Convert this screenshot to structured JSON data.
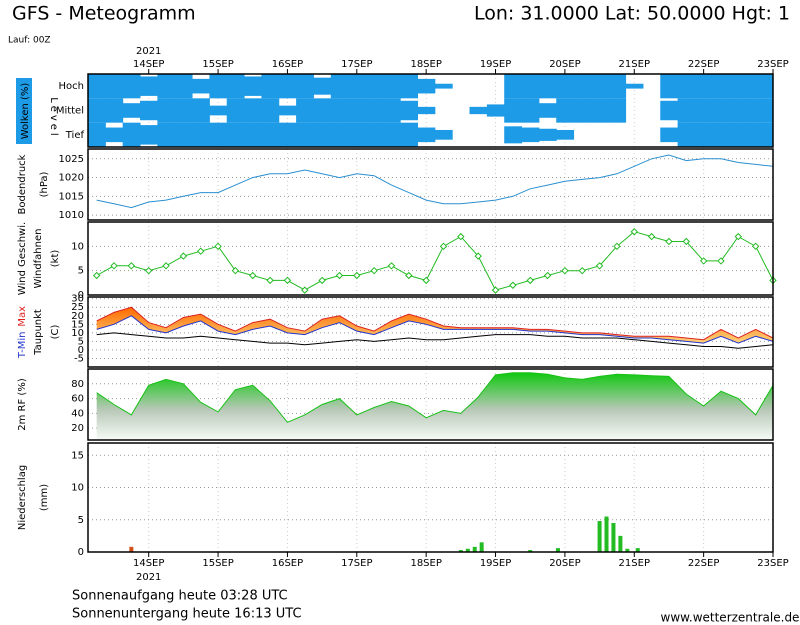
{
  "header": {
    "title": "GFS - Meteogramm",
    "location": "Lon: 31.0000 Lat: 50.0000 Hgt: 1",
    "run": "Lauf: 00Z"
  },
  "footer": {
    "sunrise": "Sonnenaufgang heute 03:28 UTC",
    "sunset": "Sonnenuntergang heute 16:13 UTC",
    "source": "www.wetterzentrale.de"
  },
  "time_axis": {
    "year": "2021",
    "xlim": [
      13.125,
      23
    ],
    "xticks": [
      {
        "value": 14,
        "label": "14SEP"
      },
      {
        "value": 15,
        "label": "15SEP"
      },
      {
        "value": 16,
        "label": "16SEP"
      },
      {
        "value": 17,
        "label": "17SEP"
      },
      {
        "value": 18,
        "label": "18SEP"
      },
      {
        "value": 19,
        "label": "19SEP"
      },
      {
        "value": 20,
        "label": "20SEP"
      },
      {
        "value": 21,
        "label": "21SEP"
      },
      {
        "value": 22,
        "label": "22SEP"
      },
      {
        "value": 23,
        "label": "23SEP"
      }
    ],
    "x": [
      13.25,
      13.5,
      13.75,
      14.0,
      14.25,
      14.5,
      14.75,
      15.0,
      15.25,
      15.5,
      15.75,
      16.0,
      16.25,
      16.5,
      16.75,
      17.0,
      17.25,
      17.5,
      17.75,
      18.0,
      18.25,
      18.5,
      18.75,
      19.0,
      19.25,
      19.5,
      19.75,
      20.0,
      20.25,
      20.5,
      20.75,
      21.0,
      21.25,
      21.5,
      21.75,
      22.0,
      22.25,
      22.5,
      22.75,
      23.0
    ]
  },
  "chart_data": [
    {
      "type": "cloud",
      "ylabel": "Wolken (%)",
      "level_label": "Level",
      "series": [
        {
          "name": "Hoch",
          "color": "#1e9be6",
          "values": [
            100,
            100,
            100,
            80,
            100,
            100,
            60,
            100,
            100,
            80,
            100,
            100,
            100,
            70,
            100,
            100,
            100,
            100,
            100,
            60,
            20,
            0,
            0,
            0,
            100,
            100,
            100,
            100,
            100,
            100,
            100,
            20,
            0,
            100,
            100,
            100,
            100,
            100,
            100,
            100
          ]
        },
        {
          "name": "Mittel",
          "color": "#1e9be6",
          "values": [
            100,
            100,
            60,
            80,
            100,
            100,
            100,
            40,
            100,
            100,
            100,
            40,
            100,
            100,
            100,
            100,
            100,
            100,
            80,
            30,
            0,
            0,
            30,
            50,
            100,
            100,
            60,
            100,
            100,
            100,
            100,
            0,
            0,
            80,
            100,
            100,
            100,
            100,
            100,
            100
          ]
        },
        {
          "name": "Tief",
          "color": "#1e9be6",
          "values": [
            100,
            60,
            100,
            80,
            100,
            100,
            100,
            100,
            100,
            100,
            100,
            100,
            100,
            100,
            100,
            100,
            100,
            100,
            100,
            60,
            40,
            0,
            0,
            0,
            70,
            60,
            50,
            40,
            0,
            0,
            0,
            0,
            0,
            60,
            100,
            100,
            100,
            100,
            100,
            100
          ]
        }
      ]
    },
    {
      "type": "line",
      "ylabel": "Bodendruck",
      "yunit": "(hPa)",
      "ylim": [
        1008.7,
        1027.6
      ],
      "yticks": [
        1010,
        1015,
        1020,
        1025
      ],
      "grid": true,
      "series": [
        {
          "color": "#2a8fd0",
          "values": [
            1014,
            1013,
            1012,
            1013.5,
            1014,
            1015,
            1016,
            1016,
            1018,
            1020,
            1021,
            1021,
            1022,
            1021,
            1020,
            1021,
            1020.5,
            1018,
            1016,
            1014,
            1013,
            1013,
            1013.5,
            1014,
            1015,
            1017,
            1018,
            1019,
            1019.5,
            1020,
            1021,
            1023,
            1025,
            1026,
            1024.5,
            1025,
            1025,
            1024,
            1023.5,
            1023
          ]
        }
      ]
    },
    {
      "type": "line",
      "ylabel": "Windfahnen",
      "yunit": "(kt)",
      "ylim": [
        0,
        15
      ],
      "yticks": [
        0,
        5,
        10
      ],
      "grid": true,
      "series": [
        {
          "name": "Wind Geschwi.",
          "color": "#22bb22",
          "marker": "diamond",
          "values": [
            4,
            6,
            6,
            5,
            6,
            8,
            9,
            10,
            5,
            4,
            3,
            3,
            1,
            3,
            4,
            4,
            5,
            6,
            4,
            3,
            10,
            12,
            8,
            1,
            2,
            3,
            4,
            5,
            5,
            6,
            10,
            13,
            12,
            11,
            11,
            7,
            7,
            12,
            10,
            3
          ]
        }
      ]
    },
    {
      "type": "band",
      "yunit": "(C)",
      "ylim": [
        -10,
        31
      ],
      "yticks": [
        -5,
        0,
        5,
        10,
        15,
        20,
        25,
        30
      ],
      "grid": true,
      "series": [
        {
          "name": "T-Min",
          "color": "#2233cc",
          "values": [
            12,
            15,
            20,
            12,
            10,
            14,
            17,
            11,
            9,
            12,
            14,
            10,
            9,
            13,
            16,
            11,
            9,
            13,
            17,
            15,
            12,
            12,
            12,
            12,
            12,
            11,
            11,
            10,
            9,
            9,
            8,
            7,
            7,
            6,
            5,
            4,
            8,
            4,
            8,
            5
          ]
        },
        {
          "name": "Max",
          "color": "#dd2222",
          "values": [
            17,
            22,
            25,
            16,
            13,
            19,
            21,
            15,
            11,
            16,
            18,
            13,
            11,
            18,
            20,
            14,
            11,
            17,
            21,
            18,
            14,
            13,
            13,
            13,
            13,
            12,
            12,
            11,
            10,
            10,
            9,
            8,
            8,
            8,
            7,
            6,
            12,
            7,
            12,
            7
          ]
        },
        {
          "name": "Taupunkt",
          "color": "#000000",
          "values": [
            9,
            10,
            9,
            8,
            7,
            7,
            8,
            7,
            6,
            5,
            4,
            4,
            3,
            4,
            5,
            6,
            5,
            6,
            7,
            6,
            6,
            7,
            8,
            9,
            9,
            9,
            8,
            8,
            7,
            7,
            7,
            6,
            5,
            4,
            3,
            2,
            2,
            1,
            2,
            3
          ]
        }
      ]
    },
    {
      "type": "area",
      "ylabel": "2m RF (%)",
      "ylim": [
        4,
        100
      ],
      "yticks": [
        20,
        40,
        60,
        80
      ],
      "grid": true,
      "series": [
        {
          "color": "#18c018",
          "values": [
            68,
            52,
            38,
            78,
            86,
            80,
            55,
            42,
            72,
            78,
            57,
            28,
            38,
            52,
            60,
            38,
            48,
            56,
            50,
            34,
            44,
            40,
            62,
            92,
            95,
            95,
            93,
            88,
            86,
            90,
            93,
            92,
            91,
            90,
            66,
            50,
            70,
            60,
            38,
            78
          ]
        }
      ]
    },
    {
      "type": "bar",
      "ylabel": "Niederschlag",
      "yunit": "(mm)",
      "ylim": [
        0,
        16.9
      ],
      "yticks": [
        0,
        5,
        10,
        15
      ],
      "grid": true,
      "x": [
        13.75,
        18.5,
        18.6,
        18.7,
        18.8,
        19.5,
        19.9,
        20.5,
        20.6,
        20.7,
        20.8,
        20.9,
        21.05
      ],
      "values": [
        0.8,
        0.3,
        0.5,
        0.8,
        1.5,
        0.3,
        0.6,
        4.8,
        5.5,
        4.5,
        2.5,
        0.5,
        0.6
      ],
      "colors": [
        "#d0501a",
        "#22bb22",
        "#22bb22",
        "#22bb22",
        "#22bb22",
        "#22bb22",
        "#22bb22",
        "#22bb22",
        "#22bb22",
        "#22bb22",
        "#22bb22",
        "#22bb22",
        "#22bb22"
      ]
    }
  ]
}
